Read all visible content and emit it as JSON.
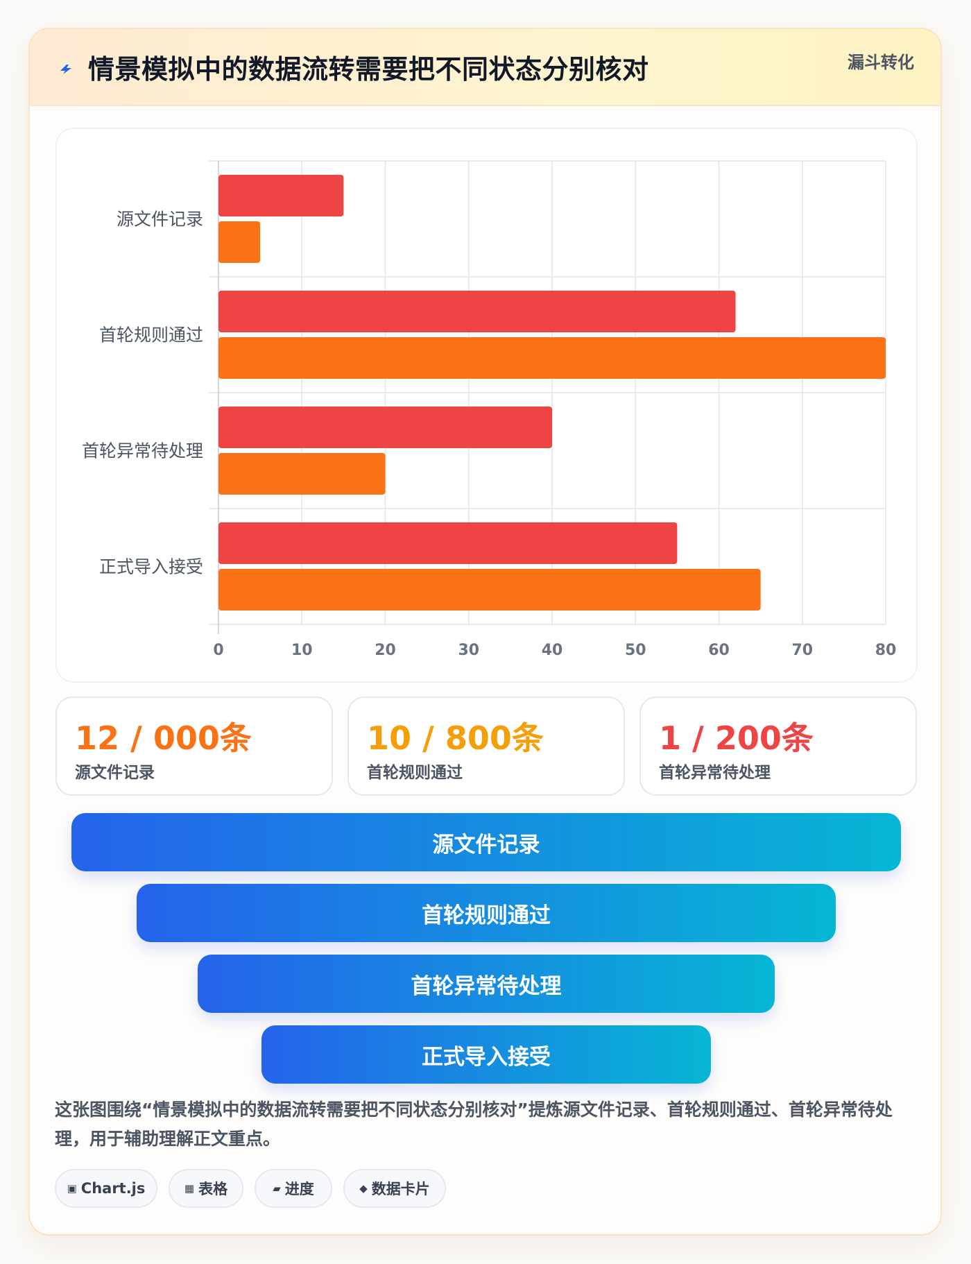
{
  "header": {
    "title": "情景模拟中的数据流转需要把不同状态分别核对",
    "tag": "漏斗转化"
  },
  "chart_data": {
    "type": "bar",
    "orientation": "horizontal",
    "categories": [
      "源文件记录",
      "首轮规则通过",
      "首轮异常待处理",
      "正式导入接受"
    ],
    "series": [
      {
        "values": [
          15,
          62,
          40,
          55
        ],
        "color": "#ef4444"
      },
      {
        "values": [
          5,
          80,
          20,
          65
        ],
        "color": "#f97316"
      }
    ],
    "xlim": [
      0,
      80
    ],
    "xticks": [
      0,
      10,
      20,
      30,
      40,
      50,
      60,
      70,
      80
    ],
    "grid": true,
    "legend": "none"
  },
  "stats": [
    {
      "value": "12 / 000条",
      "label": "源文件记录",
      "color": "#f97316"
    },
    {
      "value": "10 / 800条",
      "label": "首轮规则通过",
      "color": "#f59e0b"
    },
    {
      "value": "1 / 200条",
      "label": "首轮异常待处理",
      "color": "#ef4444"
    }
  ],
  "funnel": [
    {
      "label": "源文件记录"
    },
    {
      "label": "首轮规则通过"
    },
    {
      "label": "首轮异常待处理"
    },
    {
      "label": "正式导入接受"
    }
  ],
  "summary": "这张图围绕“情景模拟中的数据流转需要把不同状态分别核对”提炼源文件记录、首轮规则通过、首轮异常待处理，用于辅助理解正文重点。",
  "chips": [
    {
      "icon": "▣",
      "icon_name": "chart-icon",
      "label": "Chart.js"
    },
    {
      "icon": "▦",
      "icon_name": "table-icon",
      "label": "表格"
    },
    {
      "icon": "▰",
      "icon_name": "progress-icon",
      "label": "进度"
    },
    {
      "icon": "◆",
      "icon_name": "data-card-icon",
      "label": "数据卡片"
    }
  ]
}
